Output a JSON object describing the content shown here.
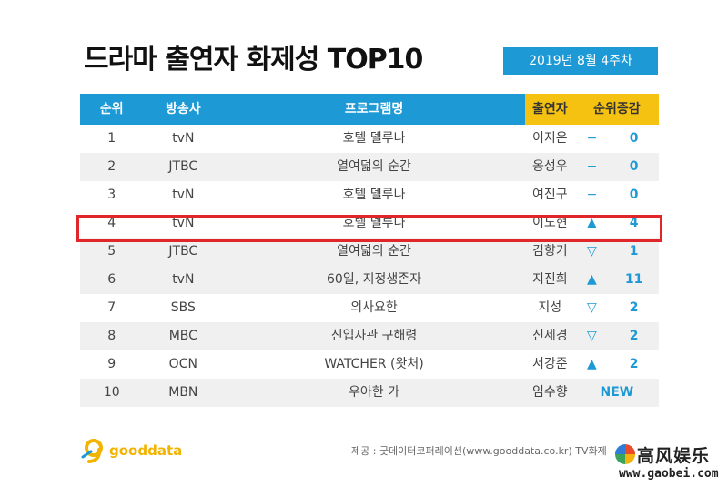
{
  "title": "드라마 출연자 화제성 TOP10",
  "week_badge": "2019년 8월 4주차",
  "headers": {
    "rank": "순위",
    "broadcaster": "방송사",
    "program": "프로그램명",
    "cast": "출연자",
    "change": "순위증감"
  },
  "rows": [
    {
      "rank": "1",
      "broadcaster": "tvN",
      "program": "호텔 델루나",
      "cast": "이지은",
      "arrow": "−",
      "delta": "0"
    },
    {
      "rank": "2",
      "broadcaster": "JTBC",
      "program": "열여덟의 순간",
      "cast": "옹성우",
      "arrow": "−",
      "delta": "0"
    },
    {
      "rank": "3",
      "broadcaster": "tvN",
      "program": "호텔 델루나",
      "cast": "여진구",
      "arrow": "−",
      "delta": "0"
    },
    {
      "rank": "4",
      "broadcaster": "tvN",
      "program": "호텔 델루나",
      "cast": "이도현",
      "arrow": "▲",
      "delta": "4"
    },
    {
      "rank": "5",
      "broadcaster": "JTBC",
      "program": "열여덟의 순간",
      "cast": "김향기",
      "arrow": "▽",
      "delta": "1"
    },
    {
      "rank": "6",
      "broadcaster": "tvN",
      "program": "60일, 지정생존자",
      "cast": "지진희",
      "arrow": "▲",
      "delta": "11"
    },
    {
      "rank": "7",
      "broadcaster": "SBS",
      "program": "의사요한",
      "cast": "지성",
      "arrow": "▽",
      "delta": "2"
    },
    {
      "rank": "8",
      "broadcaster": "MBC",
      "program": "신입사관 구해령",
      "cast": "신세경",
      "arrow": "▽",
      "delta": "2"
    },
    {
      "rank": "9",
      "broadcaster": "OCN",
      "program": "WATCHER (왓처)",
      "cast": "서강준",
      "arrow": "▲",
      "delta": "2"
    },
    {
      "rank": "10",
      "broadcaster": "MBN",
      "program": "우아한 가",
      "cast": "임수향",
      "new_label": "NEW"
    }
  ],
  "logo_text": "gooddata",
  "source_text": "제공 : 굿데이터코퍼레이션(www.gooddata.co.kr) TV화제",
  "watermark": {
    "title": "高风娱乐",
    "url": "www.gaobei.com"
  },
  "colors": {
    "header_blue": "#1d9ad6",
    "header_gold": "#f5c211",
    "highlight": "#e0262b",
    "accent": "#1d9ad6"
  }
}
